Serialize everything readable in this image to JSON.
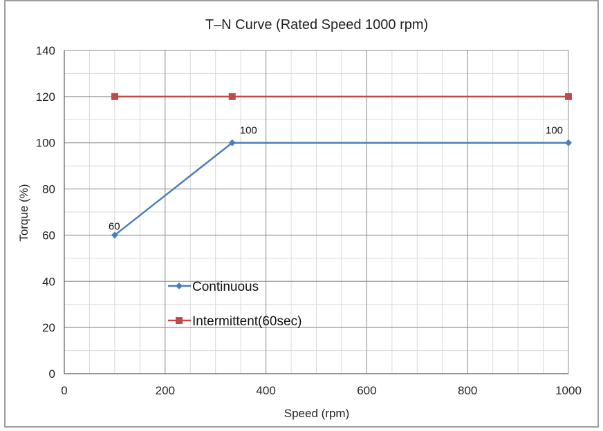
{
  "chart_data": {
    "type": "line",
    "title": "T–N Curve (Rated Speed 1000 rpm)",
    "xlabel": "Speed (rpm)",
    "ylabel": "Torque (%)",
    "xlim": [
      0,
      1000
    ],
    "ylim": [
      0,
      140
    ],
    "x_ticks": [
      0,
      200,
      400,
      600,
      800,
      1000
    ],
    "y_ticks": [
      0,
      20,
      40,
      60,
      80,
      100,
      120,
      140
    ],
    "grid": true,
    "legend_position": "inside, lower-left",
    "series": [
      {
        "name": "Continuous",
        "color": "#4a7ebb",
        "marker": "diamond",
        "points": [
          {
            "x": 100,
            "y": 60,
            "label": "60"
          },
          {
            "x": 333,
            "y": 100,
            "label": "100"
          },
          {
            "x": 1000,
            "y": 100,
            "label": "100"
          }
        ]
      },
      {
        "name": "Intermittent(60sec)",
        "color": "#be4b48",
        "marker": "square",
        "points": [
          {
            "x": 100,
            "y": 120
          },
          {
            "x": 333,
            "y": 120
          },
          {
            "x": 1000,
            "y": 120
          }
        ]
      }
    ]
  }
}
